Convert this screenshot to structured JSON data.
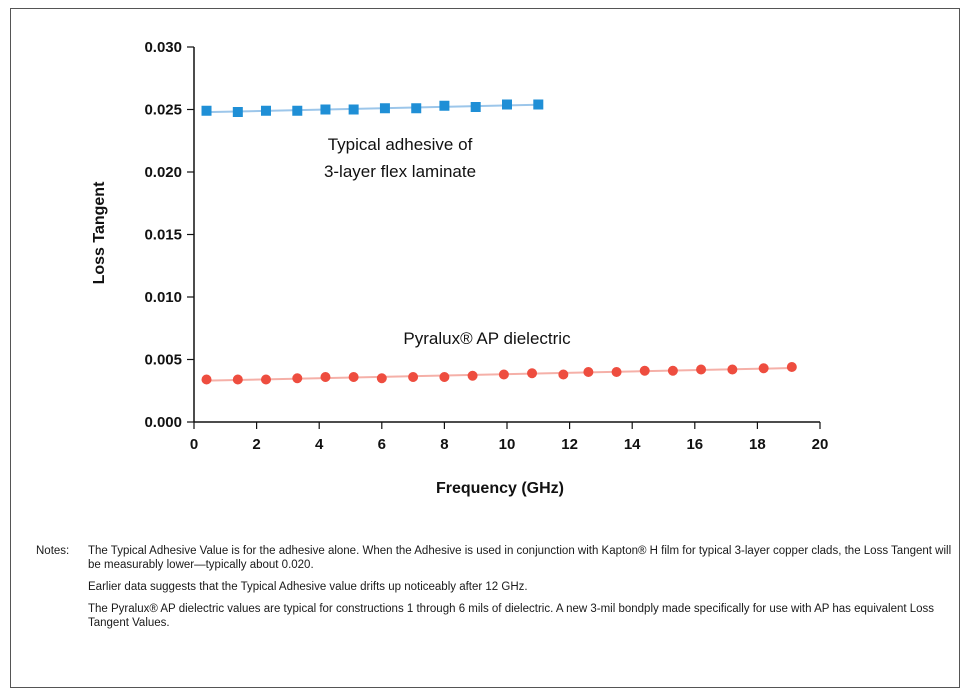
{
  "chart_data": {
    "type": "scatter",
    "xlabel": "Frequency (GHz)",
    "ylabel": "Loss Tangent",
    "xlim": [
      0,
      20
    ],
    "ylim": [
      0,
      0.03
    ],
    "x_ticks": [
      "0",
      "2",
      "4",
      "6",
      "8",
      "10",
      "12",
      "14",
      "16",
      "18",
      "20"
    ],
    "y_ticks": [
      "0.000",
      "0.005",
      "0.010",
      "0.015",
      "0.020",
      "0.025",
      "0.030"
    ],
    "grid": false,
    "annotations": [
      {
        "lines": [
          "Typical adhesive of",
          "3-layer flex laminate"
        ]
      },
      {
        "text": "Pyralux® AP dielectric"
      }
    ],
    "series": [
      {
        "marker": "square",
        "color": "#1f8fd6",
        "line_color": "#9cc6ea",
        "x": [
          0.4,
          1.4,
          2.3,
          3.3,
          4.2,
          5.1,
          6.1,
          7.1,
          8.0,
          9.0,
          10.0,
          11.0
        ],
        "y": [
          0.0249,
          0.0248,
          0.0249,
          0.0249,
          0.025,
          0.025,
          0.0251,
          0.0251,
          0.0253,
          0.0252,
          0.0254,
          0.0254
        ]
      },
      {
        "marker": "circle",
        "color": "#ee4d3f",
        "line_color": "#f5b0a8",
        "x": [
          0.4,
          1.4,
          2.3,
          3.3,
          4.2,
          5.1,
          6.0,
          7.0,
          8.0,
          8.9,
          9.9,
          10.8,
          11.8,
          12.6,
          13.5,
          14.4,
          15.3,
          16.2,
          17.2,
          18.2,
          19.1
        ],
        "y": [
          0.0034,
          0.0034,
          0.0034,
          0.0035,
          0.0036,
          0.0036,
          0.0035,
          0.0036,
          0.0036,
          0.0037,
          0.0038,
          0.0039,
          0.0038,
          0.004,
          0.004,
          0.0041,
          0.0041,
          0.0042,
          0.0042,
          0.0043,
          0.0044
        ]
      }
    ]
  },
  "notes": {
    "label": "Notes:",
    "paragraphs": [
      "The Typical Adhesive Value is for the adhesive alone. When the Adhesive is used in conjunction with Kapton® H film for typical 3-layer copper clads, the Loss Tangent will be measurably lower—typically about 0.020.",
      "Earlier data suggests that the Typical Adhesive value drifts up noticeably after 12 GHz.",
      "The Pyralux® AP dielectric values are typical for constructions 1 through 6 mils of dielectric. A new 3-mil bondply made specifically for use with AP has equivalent Loss Tangent Values."
    ]
  }
}
